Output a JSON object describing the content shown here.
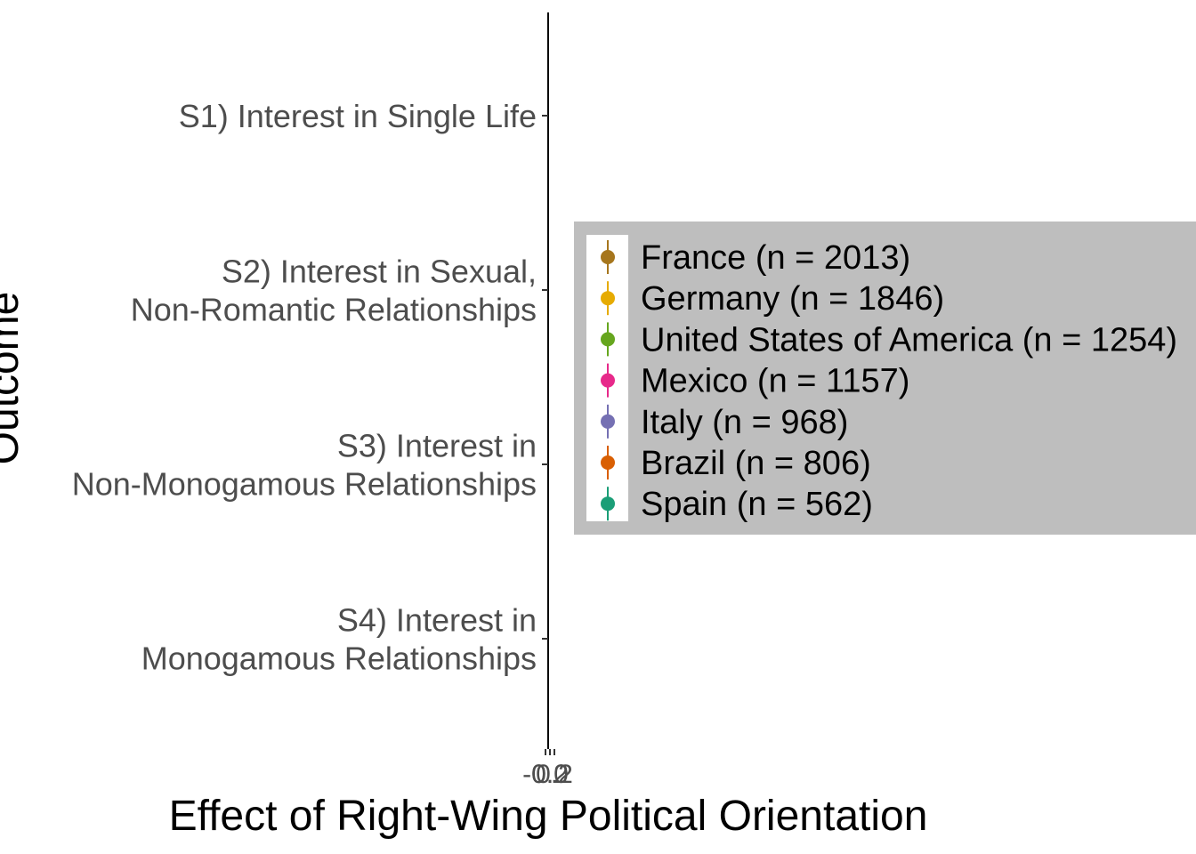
{
  "chart_data": {
    "type": "scatter",
    "orientation": "horizontal-coefficient",
    "xlabel": "Effect of Right-Wing Political Orientation",
    "ylabel": "Outcome",
    "categories": [
      [
        "S1) Interest in Single Life"
      ],
      [
        "S2) Interest in Sexual,",
        "Non-Romantic Relationships"
      ],
      [
        "S3) Interest in ",
        "Non-Monogamous Relationships"
      ],
      [
        "S4) Interest in ",
        "Monogamous Relationships"
      ]
    ],
    "x_ticks": [
      "-0.2",
      "0.0",
      "0.2"
    ],
    "xlim": [
      -0.2,
      0.2
    ],
    "grid": false,
    "legend_position": "right",
    "series": [
      {
        "name": "France (n = 2013)",
        "color": "#A6761D",
        "values": []
      },
      {
        "name": "Germany (n = 1846)",
        "color": "#E6AB02",
        "values": []
      },
      {
        "name": "United States of America (n = 1254)",
        "color": "#66A61E",
        "values": []
      },
      {
        "name": "Mexico (n = 1157)",
        "color": "#E7298A",
        "values": []
      },
      {
        "name": "Italy (n = 968)",
        "color": "#7570B3",
        "values": []
      },
      {
        "name": "Brazil (n = 806)",
        "color": "#D95F02",
        "values": []
      },
      {
        "name": "Spain (n = 562)",
        "color": "#1B9E77",
        "values": []
      }
    ]
  }
}
